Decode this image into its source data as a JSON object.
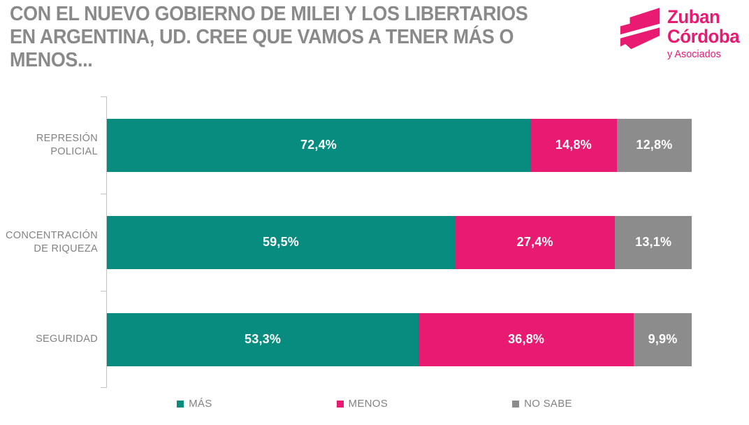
{
  "title": {
    "lines": [
      "CON EL NUEVO GOBIERNO DE MILEI Y LOS LIBERTARIOS",
      "EN ARGENTINA, UD. CREE QUE VAMOS A TENER MÁS O",
      "MENOS..."
    ]
  },
  "logo": {
    "name_line1": "Zuban",
    "name_line2": "Córdoba",
    "tagline": "y Asociados",
    "color": "#e91a72"
  },
  "colors": {
    "mas": "#088c80",
    "menos": "#e91a72",
    "no_sabe": "#8c8c8c",
    "title_text": "#8a8a8a",
    "label_text": "#828282",
    "axis": "#c3c3c3",
    "value_label_text": "#ffffff"
  },
  "chart_data": {
    "type": "bar",
    "orientation": "horizontal",
    "stacked": true,
    "grid": false,
    "xlim": [
      0,
      100
    ],
    "legend_position": "bottom",
    "categories": [
      "REPRESIÓN POLICIAL",
      "CONCENTRACIÓN DE RIQUEZA",
      "SEGURIDAD"
    ],
    "categories_display": [
      [
        "REPRESIÓN",
        "POLICIAL"
      ],
      [
        "CONCENTRACIÓN",
        "DE RIQUEZA"
      ],
      [
        "SEGURIDAD"
      ]
    ],
    "series": [
      {
        "name": "MÁS",
        "color": "#088c80",
        "values": [
          72.4,
          59.5,
          53.3
        ],
        "labels": [
          "72,4%",
          "59,5%",
          "53,3%"
        ]
      },
      {
        "name": "MENOS",
        "color": "#e91a72",
        "values": [
          14.8,
          27.4,
          36.8
        ],
        "labels": [
          "14,8%",
          "27,4%",
          "36,8%"
        ]
      },
      {
        "name": "NO SABE",
        "color": "#8c8c8c",
        "values": [
          12.8,
          13.1,
          9.9
        ],
        "labels": [
          "12,8%",
          "13,1%",
          "9,9%"
        ]
      }
    ]
  },
  "legend": [
    {
      "label": "MÁS",
      "color": "#088c80"
    },
    {
      "label": "MENOS",
      "color": "#e91a72"
    },
    {
      "label": "NO SABE",
      "color": "#8c8c8c"
    }
  ]
}
